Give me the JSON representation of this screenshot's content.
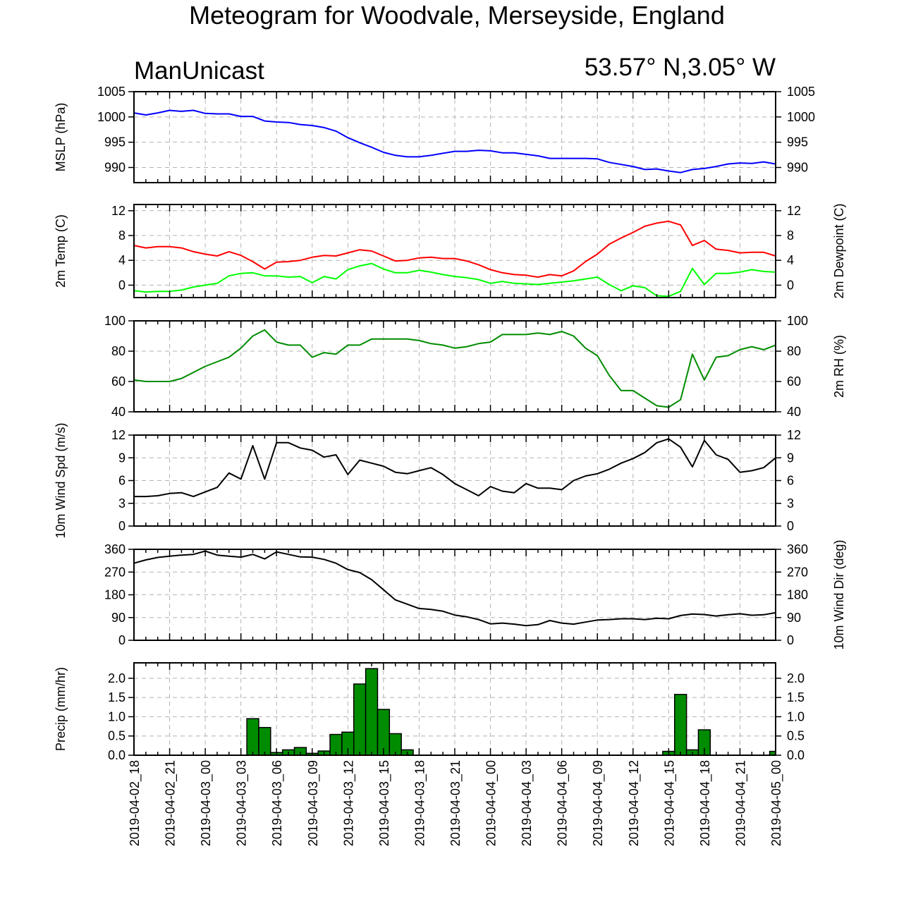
{
  "title": "Meteogram for Woodvale, Merseyside, England",
  "model": "ManUnicast",
  "location": "53.57° N,3.05° W",
  "x_time_labels": [
    "2019-04-02_18",
    "2019-04-02_21",
    "2019-04-03_00",
    "2019-04-03_03",
    "2019-04-03_06",
    "2019-04-03_09",
    "2019-04-03_12",
    "2019-04-03_15",
    "2019-04-03_18",
    "2019-04-03_21",
    "2019-04-04_00",
    "2019-04-04_03",
    "2019-04-04_06",
    "2019-04-04_09",
    "2019-04-04_12",
    "2019-04-04_15",
    "2019-04-04_18",
    "2019-04-04_21",
    "2019-04-05_00"
  ],
  "colors": {
    "mslp": "#0000ff",
    "temp": "#ff0000",
    "dewpoint": "#00ff00",
    "rh": "#008c00",
    "wind": "#000000",
    "precip": "#008c00",
    "grid": "#b4b4b4"
  },
  "chart_data": [
    {
      "type": "line",
      "panel": "mslp",
      "ylabel_left": "MSLP (hPa)",
      "ylim": [
        987,
        1005
      ],
      "yticks": [
        990,
        995,
        1000,
        1005
      ],
      "right_axis_ticks": true,
      "x_hours": [
        0,
        1,
        2,
        3,
        4,
        5,
        6,
        7,
        8,
        9,
        10,
        11,
        12,
        13,
        14,
        15,
        16,
        17,
        18,
        19,
        20,
        21,
        22,
        23,
        24,
        25,
        26,
        27,
        28,
        29,
        30,
        31,
        32,
        33,
        34,
        35,
        36,
        37,
        38,
        39,
        40,
        41,
        42,
        43,
        44,
        45,
        46,
        47,
        48,
        49,
        50,
        51,
        52,
        53,
        54
      ],
      "series": [
        {
          "values": [
            1000.8,
            1000.4,
            1000.8,
            1001.3,
            1001.1,
            1001.3,
            1000.7,
            1000.6,
            1000.6,
            1000.1,
            1000.1,
            999.2,
            999.0,
            998.9,
            998.5,
            998.3,
            997.9,
            997.2,
            995.9,
            994.9,
            994.0,
            993.0,
            992.4,
            992.1,
            992.1,
            992.4,
            992.8,
            993.2,
            993.2,
            993.4,
            993.3,
            992.9,
            992.9,
            992.6,
            992.3,
            991.8,
            991.8,
            991.8,
            991.8,
            991.7,
            991.0,
            990.6,
            990.2,
            989.6,
            989.7,
            989.3,
            989.0,
            989.6,
            989.8,
            990.2,
            990.7,
            990.9,
            990.8,
            991.1,
            990.7
          ]
        }
      ]
    },
    {
      "type": "line",
      "panel": "temperature",
      "ylabel_left": "2m Temp (C)",
      "ylabel_right": "2m Dewpoint (C)",
      "ylim": [
        -2,
        13
      ],
      "yticks": [
        0,
        4,
        8,
        12
      ],
      "x_hours": [
        0,
        1,
        2,
        3,
        4,
        5,
        6,
        7,
        8,
        9,
        10,
        11,
        12,
        13,
        14,
        15,
        16,
        17,
        18,
        19,
        20,
        21,
        22,
        23,
        24,
        25,
        26,
        27,
        28,
        29,
        30,
        31,
        32,
        33,
        34,
        35,
        36,
        37,
        38,
        39,
        40,
        41,
        42,
        43,
        44,
        45,
        46,
        47,
        48,
        49,
        50,
        51,
        52,
        53,
        54
      ],
      "series": [
        {
          "key": "temp",
          "values": [
            6.4,
            6.0,
            6.2,
            6.2,
            6.0,
            5.4,
            5.0,
            4.7,
            5.4,
            4.8,
            3.8,
            2.6,
            3.7,
            3.8,
            4.0,
            4.5,
            4.8,
            4.7,
            5.2,
            5.7,
            5.5,
            4.7,
            3.9,
            4.0,
            4.4,
            4.5,
            4.3,
            4.3,
            3.9,
            3.3,
            2.5,
            2.0,
            1.7,
            1.6,
            1.3,
            1.7,
            1.5,
            2.3,
            3.8,
            5.0,
            6.6,
            7.6,
            8.5,
            9.5,
            10.0,
            10.3,
            9.7,
            6.4,
            7.2,
            5.8,
            5.6,
            5.2,
            5.3,
            5.3,
            4.7
          ]
        },
        {
          "key": "dewpoint",
          "values": [
            -0.9,
            -1.1,
            -1.0,
            -1.0,
            -0.8,
            -0.3,
            0.0,
            0.3,
            1.5,
            1.9,
            2.0,
            1.5,
            1.5,
            1.3,
            1.4,
            0.4,
            1.4,
            1.0,
            2.5,
            3.1,
            3.5,
            2.6,
            2.0,
            2.0,
            2.4,
            2.1,
            1.7,
            1.4,
            1.2,
            0.9,
            0.3,
            0.6,
            0.3,
            0.2,
            0.1,
            0.3,
            0.5,
            0.7,
            1.0,
            1.3,
            0.1,
            -0.9,
            -0.1,
            -0.4,
            -1.7,
            -1.8,
            -1.0,
            2.7,
            0.1,
            1.9,
            1.9,
            2.1,
            2.5,
            2.2,
            2.1
          ]
        }
      ]
    },
    {
      "type": "line",
      "panel": "rh",
      "ylabel_right": "2m RH (%)",
      "ylim": [
        40,
        100
      ],
      "yticks": [
        40,
        60,
        80,
        100
      ],
      "x_hours": [
        0,
        1,
        2,
        3,
        4,
        5,
        6,
        7,
        8,
        9,
        10,
        11,
        12,
        13,
        14,
        15,
        16,
        17,
        18,
        19,
        20,
        21,
        22,
        23,
        24,
        25,
        26,
        27,
        28,
        29,
        30,
        31,
        32,
        33,
        34,
        35,
        36,
        37,
        38,
        39,
        40,
        41,
        42,
        43,
        44,
        45,
        46,
        47,
        48,
        49,
        50,
        51,
        52,
        53,
        54
      ],
      "series": [
        {
          "values": [
            61,
            60,
            60,
            60,
            62,
            66,
            70,
            73,
            76,
            82,
            90,
            94,
            86,
            84,
            84,
            76,
            79,
            78,
            84,
            84,
            88,
            88,
            88,
            88,
            87,
            85,
            84,
            82,
            83,
            85,
            86,
            91,
            91,
            91,
            92,
            91,
            93,
            90,
            82,
            77,
            64,
            54,
            54,
            49,
            44,
            43,
            48,
            78,
            61,
            76,
            77,
            81,
            83,
            81,
            84
          ]
        }
      ]
    },
    {
      "type": "line",
      "panel": "wind_speed",
      "ylabel_left": "10m Wind Spd (m/s)",
      "ylim": [
        0,
        12
      ],
      "yticks": [
        0,
        3,
        6,
        9,
        12
      ],
      "x_hours": [
        0,
        1,
        2,
        3,
        4,
        5,
        6,
        7,
        8,
        9,
        10,
        11,
        12,
        13,
        14,
        15,
        16,
        17,
        18,
        19,
        20,
        21,
        22,
        23,
        24,
        25,
        26,
        27,
        28,
        29,
        30,
        31,
        32,
        33,
        34,
        35,
        36,
        37,
        38,
        39,
        40,
        41,
        42,
        43,
        44,
        45,
        46,
        47,
        48,
        49,
        50,
        51,
        52,
        53,
        54
      ],
      "series": [
        {
          "values": [
            3.9,
            3.9,
            4.0,
            4.3,
            4.4,
            3.9,
            4.5,
            5.1,
            7.0,
            6.2,
            10.6,
            6.2,
            11.0,
            11.0,
            10.3,
            10.0,
            9.1,
            9.4,
            6.8,
            8.7,
            8.3,
            7.9,
            7.1,
            6.9,
            7.3,
            7.7,
            6.8,
            5.6,
            4.8,
            4.0,
            5.2,
            4.6,
            4.4,
            5.6,
            5.0,
            5.0,
            4.8,
            6.0,
            6.6,
            6.9,
            7.5,
            8.3,
            8.9,
            9.7,
            11.0,
            11.5,
            10.4,
            7.8,
            11.3,
            9.4,
            8.8,
            7.1,
            7.3,
            7.7,
            9.0
          ]
        }
      ]
    },
    {
      "type": "line",
      "panel": "wind_dir",
      "ylabel_right": "10m Wind Dir (deg)",
      "ylim": [
        0,
        360
      ],
      "yticks": [
        0,
        90,
        180,
        270,
        360
      ],
      "x_hours": [
        0,
        1,
        2,
        3,
        4,
        5,
        6,
        7,
        8,
        9,
        10,
        11,
        12,
        13,
        14,
        15,
        16,
        17,
        18,
        19,
        20,
        21,
        22,
        23,
        24,
        25,
        26,
        27,
        28,
        29,
        30,
        31,
        32,
        33,
        34,
        35,
        36,
        37,
        38,
        39,
        40,
        41,
        42,
        43,
        44,
        45,
        46,
        47,
        48,
        49,
        50,
        51,
        52,
        53,
        54
      ],
      "series": [
        {
          "values": [
            305,
            318,
            328,
            333,
            337,
            340,
            353,
            337,
            333,
            329,
            340,
            322,
            350,
            340,
            330,
            329,
            320,
            305,
            280,
            268,
            240,
            200,
            160,
            143,
            126,
            122,
            115,
            100,
            93,
            82,
            65,
            68,
            64,
            58,
            62,
            78,
            68,
            64,
            72,
            80,
            82,
            85,
            85,
            82,
            87,
            85,
            98,
            104,
            102,
            96,
            101,
            105,
            99,
            101,
            109
          ]
        }
      ]
    },
    {
      "type": "bar",
      "panel": "precip",
      "ylabel_left": "Precip (mm/hr)",
      "ylim": [
        0,
        2.4
      ],
      "yticks": [
        0.0,
        0.5,
        1.0,
        1.5,
        2.0
      ],
      "ytick_labels": [
        "0.0",
        "0.5",
        "1.0",
        "1.5",
        "2.0"
      ],
      "right_axis_labels": true,
      "x_hours": [
        0,
        1,
        2,
        3,
        4,
        5,
        6,
        7,
        8,
        9,
        10,
        11,
        12,
        13,
        14,
        15,
        16,
        17,
        18,
        19,
        20,
        21,
        22,
        23,
        24,
        25,
        26,
        27,
        28,
        29,
        30,
        31,
        32,
        33,
        34,
        35,
        36,
        37,
        38,
        39,
        40,
        41,
        42,
        43,
        44,
        45,
        46,
        47,
        48,
        49,
        50,
        51,
        52,
        53,
        54
      ],
      "values": [
        0,
        0,
        0,
        0,
        0,
        0,
        0,
        0,
        0,
        0,
        0.95,
        0.72,
        0.07,
        0.14,
        0.2,
        0.05,
        0.11,
        0.54,
        0.6,
        1.85,
        2.25,
        1.19,
        0.56,
        0.14,
        0,
        0,
        0,
        0,
        0,
        0,
        0,
        0,
        0,
        0,
        0,
        0,
        0,
        0,
        0,
        0,
        0,
        0,
        0,
        0,
        0,
        0.1,
        1.58,
        0.14,
        0.66,
        0,
        0,
        0,
        0,
        0,
        0.1
      ]
    }
  ]
}
